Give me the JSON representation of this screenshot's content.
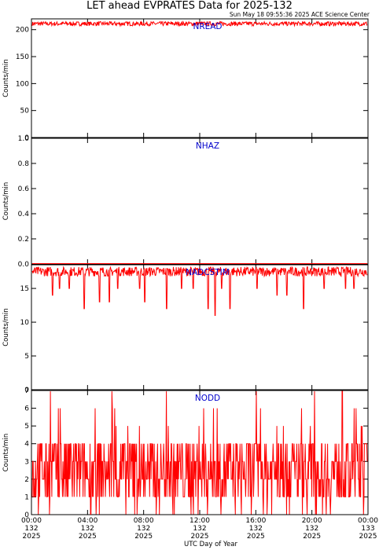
{
  "title": "LET ahead EVPRATES Data for 2025-132",
  "timestamp": "Sun May 18 09:55:36 2025 ACE Science Center",
  "xlabel": "UTC Day of Year",
  "colors": {
    "trace": "#ff0000",
    "panel_label": "#0000cc",
    "axes": "#000000"
  },
  "chart_data": [
    {
      "type": "line",
      "panel_label": "NREAD",
      "ylabel": "Counts/min",
      "ylim": [
        0,
        220
      ],
      "yticks": [
        0,
        50,
        100,
        150,
        200
      ],
      "ytick_labels": [
        "0",
        "50",
        "100",
        "150",
        "200"
      ],
      "series": [
        {
          "kind": "band",
          "base": 211,
          "amp": 4,
          "values": []
        }
      ]
    },
    {
      "type": "line",
      "panel_label": "NHAZ",
      "ylabel": "Counts/min",
      "ylim": [
        0,
        1
      ],
      "yticks": [
        0,
        0.2,
        0.4,
        0.6,
        0.8,
        1.0
      ],
      "ytick_labels": [
        "0.0",
        "0.2",
        "0.4",
        "0.6",
        "0.8",
        "1.0"
      ],
      "series": [
        {
          "kind": "flat",
          "base": 0,
          "values": []
        }
      ]
    },
    {
      "type": "line",
      "panel_label": "NADCSTIM",
      "ylabel": "Counts/min",
      "ylim": [
        0,
        18.5
      ],
      "yticks": [
        0,
        5,
        10,
        15
      ],
      "ytick_labels": [
        "0",
        "5",
        "10",
        "15"
      ],
      "series": [
        {
          "kind": "band",
          "base": 17.5,
          "amp": 0.7,
          "dips": [
            [
              0.06,
              14
            ],
            [
              0.08,
              15
            ],
            [
              0.11,
              15
            ],
            [
              0.155,
              12
            ],
            [
              0.2,
              13
            ],
            [
              0.23,
              13
            ],
            [
              0.255,
              15
            ],
            [
              0.32,
              15
            ],
            [
              0.335,
              13
            ],
            [
              0.4,
              12
            ],
            [
              0.445,
              15
            ],
            [
              0.48,
              15
            ],
            [
              0.525,
              12
            ],
            [
              0.545,
              11
            ],
            [
              0.565,
              15
            ],
            [
              0.59,
              12
            ],
            [
              0.67,
              15
            ],
            [
              0.73,
              14
            ],
            [
              0.76,
              14
            ],
            [
              0.81,
              12
            ],
            [
              0.87,
              15
            ],
            [
              0.935,
              15
            ],
            [
              0.96,
              15
            ]
          ],
          "values": []
        }
      ]
    },
    {
      "type": "line",
      "panel_label": "NODD",
      "ylabel": "Counts/min",
      "ylim": [
        0,
        7
      ],
      "yticks": [
        0,
        1,
        2,
        3,
        4,
        5,
        6,
        7
      ],
      "ytick_labels": [
        "0",
        "1",
        "2",
        "3",
        "4",
        "5",
        "6",
        "7"
      ],
      "series": [
        {
          "kind": "poisson",
          "mean": 2.4,
          "max": 7,
          "values": []
        }
      ]
    }
  ],
  "x_axis": {
    "xlim_hours": [
      0,
      24
    ],
    "ticks": [
      {
        "time": "00:00",
        "day": "132",
        "year": "2025",
        "hour": 0
      },
      {
        "time": "04:00",
        "day": "132",
        "year": "2025",
        "hour": 4
      },
      {
        "time": "08:00",
        "day": "132",
        "year": "2025",
        "hour": 8
      },
      {
        "time": "12:00",
        "day": "132",
        "year": "2025",
        "hour": 12
      },
      {
        "time": "16:00",
        "day": "132",
        "year": "2025",
        "hour": 16
      },
      {
        "time": "20:00",
        "day": "132",
        "year": "2025",
        "hour": 20
      },
      {
        "time": "00:00",
        "day": "133",
        "year": "2025",
        "hour": 24
      }
    ]
  }
}
